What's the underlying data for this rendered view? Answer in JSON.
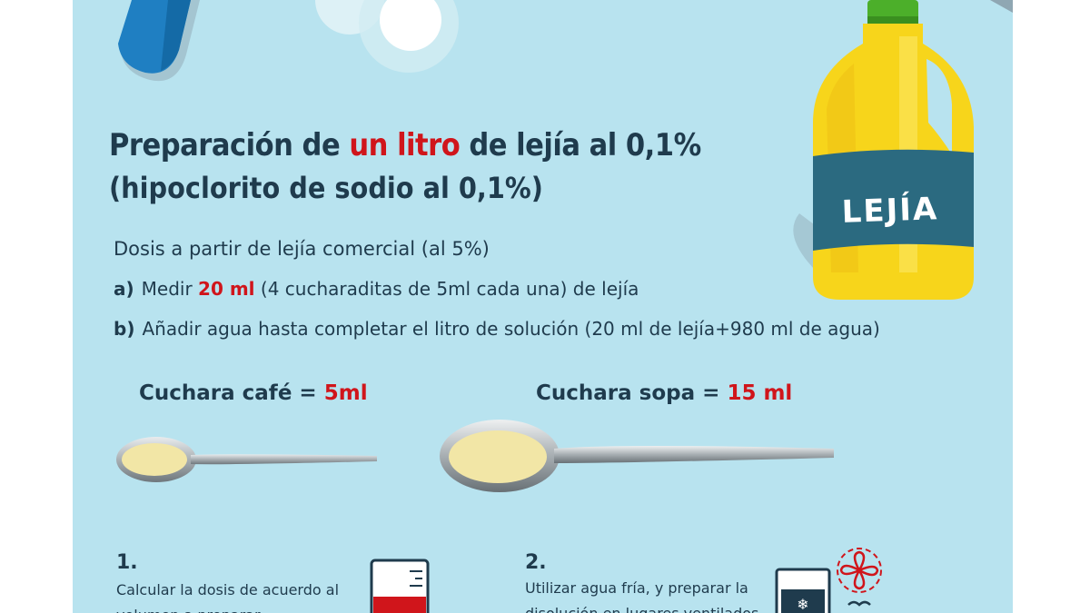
{
  "title": {
    "part1": "Preparación de ",
    "highlight": "un litro",
    "part2": " de lejía al 0,1%"
  },
  "subtitle": "(hipoclorito de sodio al 0,1%)",
  "dosis_intro": "Dosis a partir de lejía comercial (al 5%)",
  "steps": [
    {
      "letter": "a)",
      "pre": "Medir ",
      "highlight": "20 ml",
      "post": " (4 cucharaditas de 5ml cada una) de lejía"
    },
    {
      "letter": "b)",
      "pre": "Añadir agua hasta completar el litro de solución (20 ml de lejía+980 ml de agua)",
      "highlight": "",
      "post": ""
    }
  ],
  "spoons": [
    {
      "name": "Cuchara café",
      "equals": " = ",
      "amount": "5ml"
    },
    {
      "name": "Cuchara sopa",
      "equals": " = ",
      "amount": "15 ml"
    }
  ],
  "bottle": {
    "label": "LEJÍA"
  },
  "numbered": [
    {
      "number": "1.",
      "text": "Calcular la dosis de acuerdo al volumen a preparar"
    },
    {
      "number": "2.",
      "text": "Utilizar agua fría, y preparar la disolución en lugares ventilados"
    }
  ],
  "colors": {
    "background": "#b8e3ef",
    "text": "#1f3b4d",
    "accent_red": "#d0151b",
    "bottle_yellow": "#f7d51b",
    "bottle_label": "#2b6a80",
    "cap_green": "#4caf2a"
  }
}
